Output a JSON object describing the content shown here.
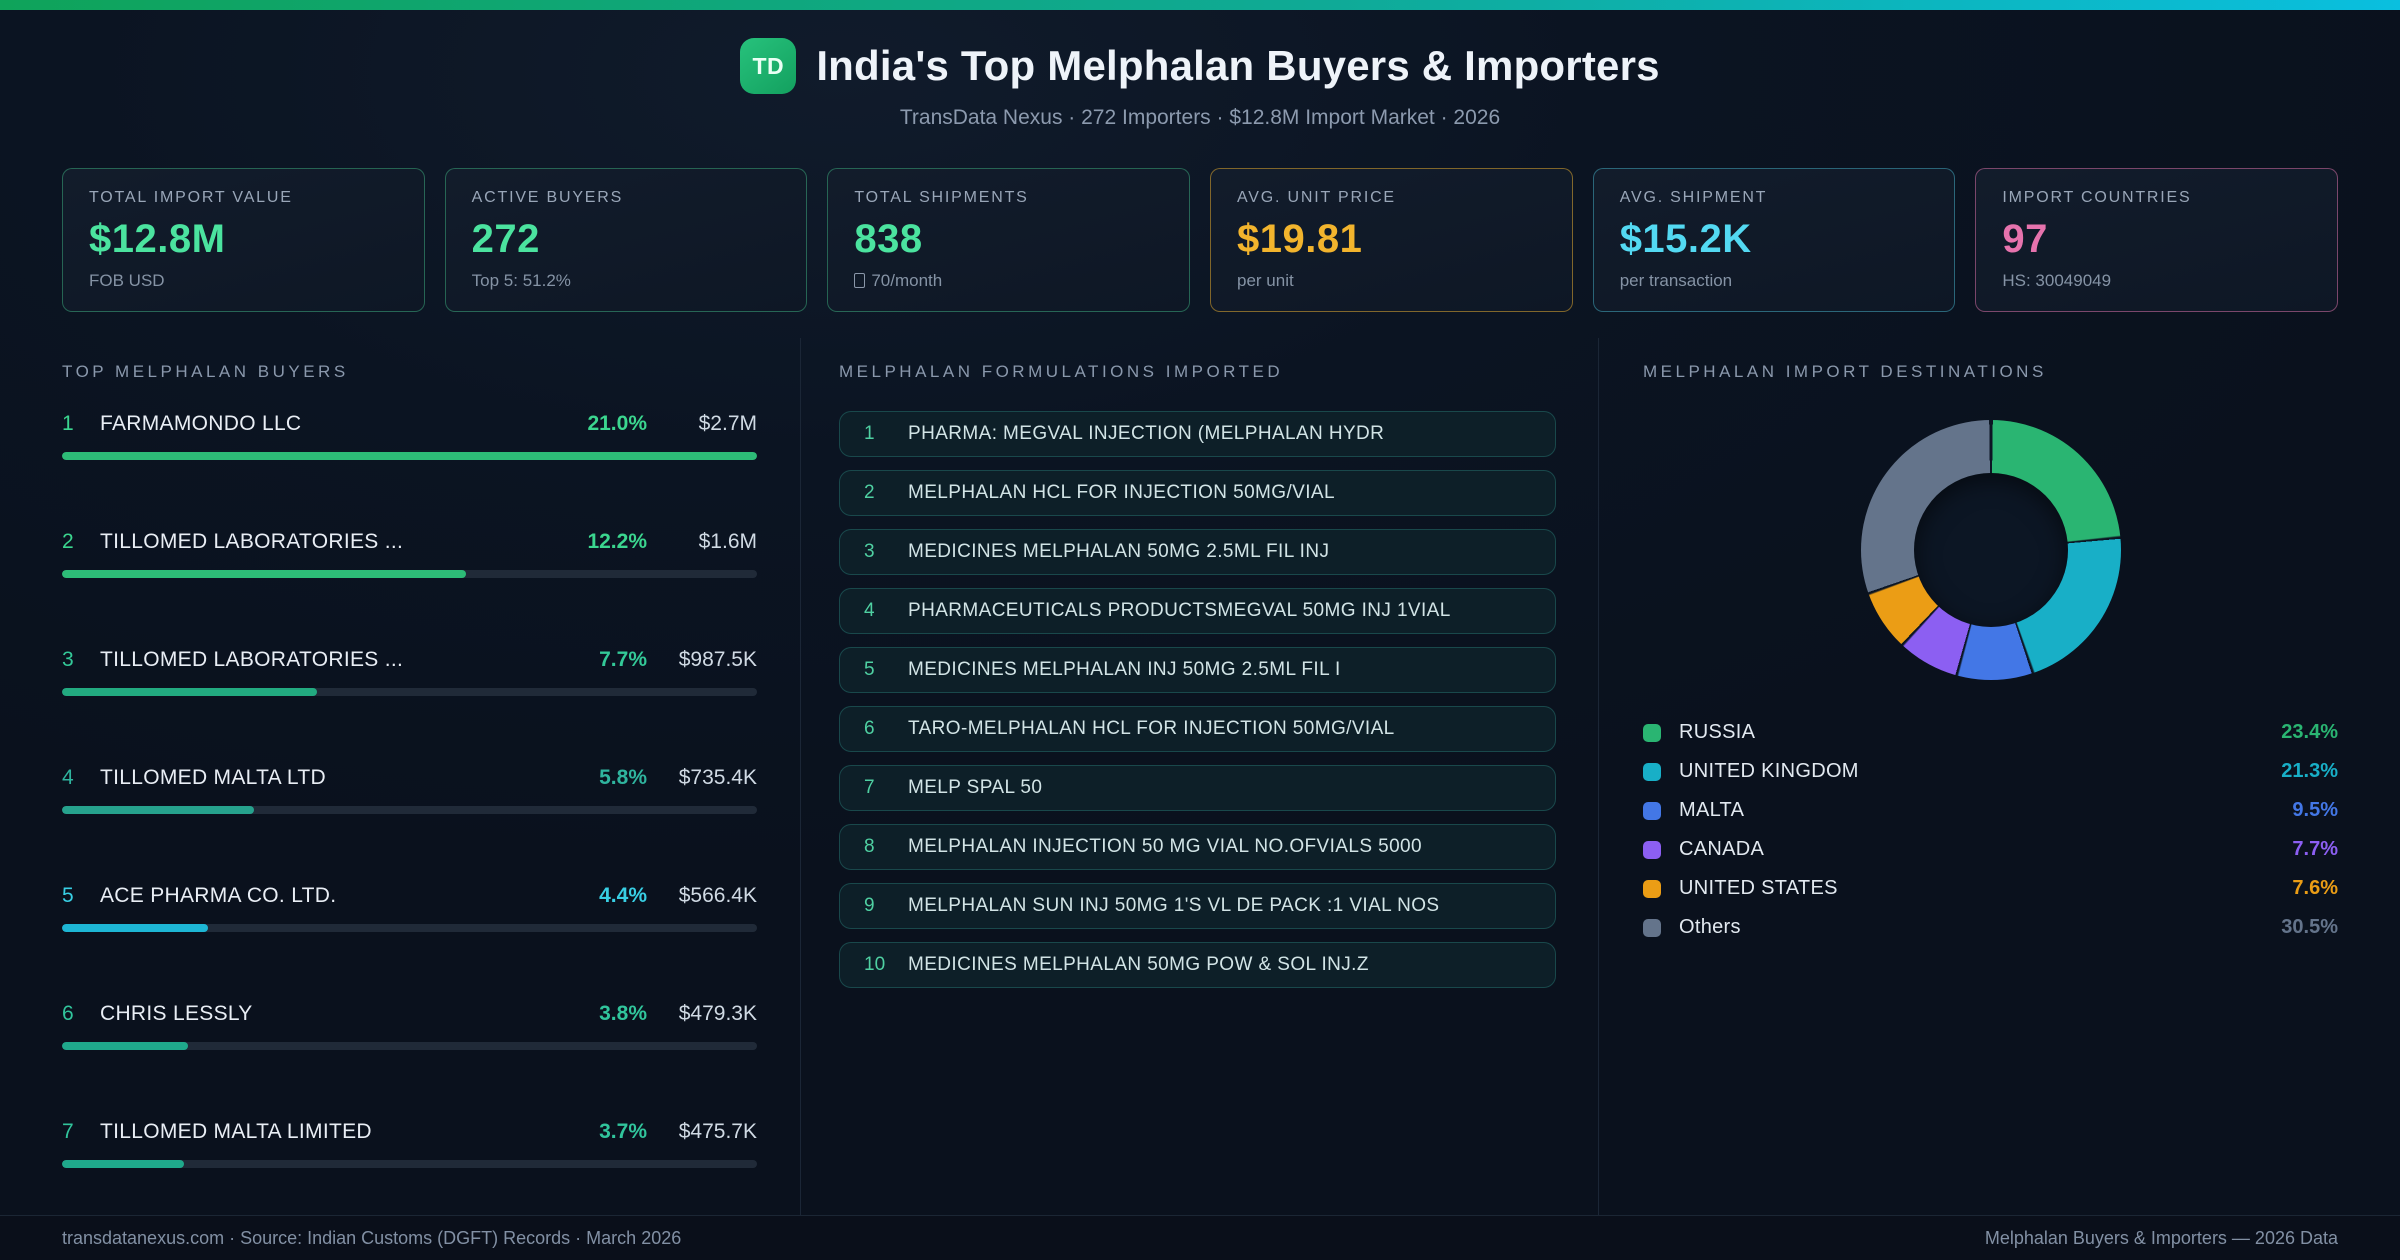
{
  "theme": {
    "accent_start": "#0fa35a",
    "accent_mid": "#0faa96",
    "accent_end": "#0abfdf",
    "hole_color": "#0c1624"
  },
  "header": {
    "logo_text": "TD",
    "title": "India's Top Melphalan Buyers & Importers",
    "subtitle": "TransData Nexus · 272 Importers · $12.8M Import Market · 2026"
  },
  "stat_cards": [
    {
      "label": "TOTAL IMPORT VALUE",
      "value": "$12.8M",
      "sub": "FOB USD",
      "value_color": "#4be39f",
      "border_color": "rgba(77,227,159,0.38)",
      "sub_box_glyph": false
    },
    {
      "label": "ACTIVE BUYERS",
      "value": "272",
      "sub": "Top 5: 51.2%",
      "value_color": "#4be39f",
      "border_color": "rgba(77,227,159,0.38)",
      "sub_box_glyph": false
    },
    {
      "label": "TOTAL SHIPMENTS",
      "value": "838",
      "sub": "70/month",
      "value_color": "#4be39f",
      "border_color": "rgba(77,227,159,0.38)",
      "sub_box_glyph": true
    },
    {
      "label": "AVG. UNIT PRICE",
      "value": "$19.81",
      "sub": "per unit",
      "value_color": "#f2b42d",
      "border_color": "rgba(242,180,45,0.5)",
      "sub_box_glyph": false
    },
    {
      "label": "AVG. SHIPMENT",
      "value": "$15.2K",
      "sub": "per transaction",
      "value_color": "#53d9f2",
      "border_color": "rgba(83,217,242,0.4)",
      "sub_box_glyph": false
    },
    {
      "label": "IMPORT COUNTRIES",
      "value": "97",
      "sub": "HS: 30049049",
      "value_color": "#e673ad",
      "border_color": "rgba(230,115,173,0.5)",
      "sub_box_glyph": false
    }
  ],
  "buyers": {
    "section_title": "TOP MELPHALAN BUYERS"
  },
  "formulations": {
    "section_title": "MELPHALAN FORMULATIONS IMPORTED",
    "items": [
      "PHARMA: MEGVAL INJECTION (MELPHALAN HYDR",
      "MELPHALAN HCL FOR INJECTION 50MG/VIAL",
      "MEDICINES MELPHALAN 50MG 2.5ML FIL INJ",
      "PHARMACEUTICALS PRODUCTSMEGVAL 50MG INJ 1VIAL",
      "MEDICINES MELPHALAN INJ 50MG 2.5ML FIL I",
      "TARO-MELPHALAN HCL FOR INJECTION 50MG/VIAL",
      "MELP SPAL 50",
      "MELPHALAN INJECTION 50 MG VIAL NO.OFVIALS 5000",
      "MELPHALAN SUN INJ 50MG 1'S VL DE PACK :1 VIAL NOS",
      "MEDICINES MELPHALAN 50MG POW & SOL INJ.Z"
    ]
  },
  "destinations": {
    "section_title": "MELPHALAN IMPORT DESTINATIONS"
  },
  "footer": {
    "left": "transdatanexus.com · Source: Indian Customs (DGFT) Records · March 2026",
    "right": "Melphalan Buyers & Importers — 2026 Data"
  },
  "chart_data": [
    {
      "type": "bar",
      "title": "TOP MELPHALAN BUYERS",
      "categories": [
        "FARMAMONDO LLC",
        "TILLOMED LABORATORIES ...",
        "TILLOMED LABORATORIES ...",
        "TILLOMED MALTA LTD",
        "ACE PHARMA CO. LTD.",
        "CHRIS LESSLY",
        "TILLOMED MALTA LIMITED"
      ],
      "values": [
        21.0,
        12.2,
        7.7,
        5.8,
        4.4,
        3.8,
        3.7
      ],
      "value_labels": [
        "$2.7M",
        "$1.6M",
        "$987.5K",
        "$735.4K",
        "$566.4K",
        "$479.3K",
        "$475.7K"
      ],
      "unit": "%",
      "accent_colors": [
        "#3bd68f",
        "#3bd68f",
        "#33c998",
        "#2fb49e",
        "#38cfe4",
        "#31c59c",
        "#31c59c"
      ],
      "bar_colors": [
        "#2dbc77",
        "#2dbc77",
        "#22aa80",
        "#26a28d",
        "#1db6d4",
        "#1fa98b",
        "#1fa98b"
      ],
      "xlim": [
        0,
        21.0
      ],
      "orientation": "horizontal"
    },
    {
      "type": "pie",
      "donut": true,
      "title": "MELPHALAN IMPORT DESTINATIONS",
      "labels": [
        "RUSSIA",
        "UNITED KINGDOM",
        "MALTA",
        "CANADA",
        "UNITED STATES",
        "Others"
      ],
      "values": [
        23.4,
        21.3,
        9.5,
        7.7,
        7.6,
        30.5
      ],
      "colors": [
        "#2ab572",
        "#18afc7",
        "#4377e6",
        "#8c5ff2",
        "#eb9d15",
        "#64748b"
      ],
      "legend_position": "bottom",
      "start_angle_deg": 0,
      "direction": "clockwise"
    }
  ]
}
